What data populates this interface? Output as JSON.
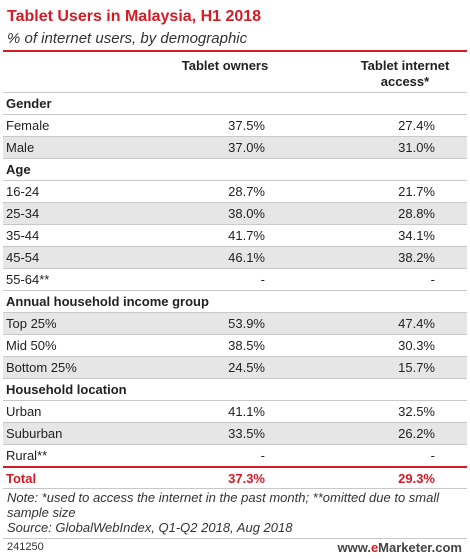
{
  "chart_data": {
    "type": "table",
    "title": "Tablet Users in Malaysia, H1 2018",
    "subtitle": "% of internet users, by demographic",
    "columns": [
      "Tablet owners",
      "Tablet internet access*"
    ],
    "rows": [
      {
        "kind": "section",
        "label": "Gender"
      },
      {
        "kind": "data",
        "label": "Female",
        "values": [
          "37.5%",
          "27.4%"
        ]
      },
      {
        "kind": "data",
        "label": "Male",
        "values": [
          "37.0%",
          "31.0%"
        ]
      },
      {
        "kind": "section",
        "label": "Age"
      },
      {
        "kind": "data",
        "label": "16-24",
        "values": [
          "28.7%",
          "21.7%"
        ]
      },
      {
        "kind": "data",
        "label": "25-34",
        "values": [
          "38.0%",
          "28.8%"
        ]
      },
      {
        "kind": "data",
        "label": "35-44",
        "values": [
          "41.7%",
          "34.1%"
        ]
      },
      {
        "kind": "data",
        "label": "45-54",
        "values": [
          "46.1%",
          "38.2%"
        ]
      },
      {
        "kind": "data",
        "label": "55-64**",
        "values": [
          "-",
          "-"
        ]
      },
      {
        "kind": "section",
        "label": "Annual household income group"
      },
      {
        "kind": "data",
        "label": "Top 25%",
        "values": [
          "53.9%",
          "47.4%"
        ]
      },
      {
        "kind": "data",
        "label": "Mid 50%",
        "values": [
          "38.5%",
          "30.3%"
        ]
      },
      {
        "kind": "data",
        "label": "Bottom 25%",
        "values": [
          "24.5%",
          "15.7%"
        ]
      },
      {
        "kind": "section",
        "label": "Household location"
      },
      {
        "kind": "data",
        "label": "Urban",
        "values": [
          "41.1%",
          "32.5%"
        ]
      },
      {
        "kind": "data",
        "label": "Suburban",
        "values": [
          "33.5%",
          "26.2%"
        ]
      },
      {
        "kind": "data",
        "label": "Rural**",
        "values": [
          "-",
          "-"
        ]
      },
      {
        "kind": "total",
        "label": "Total",
        "values": [
          "37.3%",
          "29.3%"
        ]
      }
    ]
  },
  "footer": {
    "note": "Note: *used to access the internet in the past month; **omitted due to small sample size",
    "source": "Source: GlobalWebIndex, Q1-Q2 2018, Aug 2018",
    "code": "241250",
    "brand_prefix": "www.",
    "brand_highlight": "e",
    "brand_suffix": "Marketer.com"
  },
  "colors": {
    "accent": "#d51b24",
    "row_shade": "#e6e6e6",
    "rule": "#c8c8c8"
  }
}
